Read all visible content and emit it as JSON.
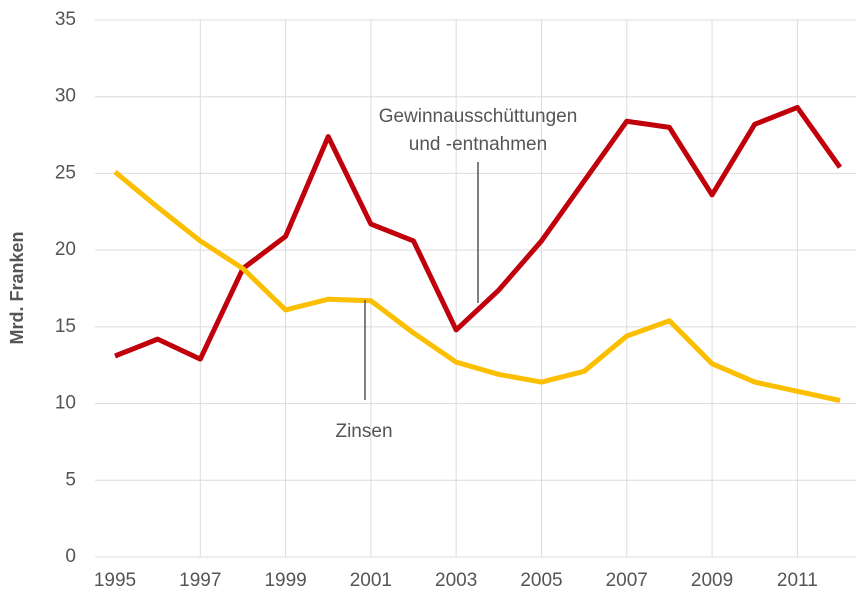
{
  "chart_data": {
    "type": "line",
    "y_label": "Mrd. Franken",
    "x": [
      1995,
      1996,
      1997,
      1998,
      1999,
      2000,
      2001,
      2002,
      2003,
      2004,
      2005,
      2006,
      2007,
      2008,
      2009,
      2010,
      2011,
      2012
    ],
    "series": [
      {
        "name": "Gewinnausschüttungen und -entnahmen",
        "color": "#c0000b",
        "values": [
          13.1,
          14.2,
          12.9,
          18.8,
          20.9,
          27.4,
          21.7,
          20.6,
          14.8,
          17.4,
          20.6,
          24.5,
          28.4,
          28.0,
          23.6,
          28.2,
          29.3,
          25.4
        ]
      },
      {
        "name": "Zinsen",
        "color": "#fbbf00",
        "values": [
          25.1,
          22.8,
          20.6,
          18.8,
          16.1,
          16.8,
          16.7,
          14.6,
          12.7,
          11.9,
          11.4,
          12.1,
          14.4,
          15.4,
          12.6,
          11.4,
          10.8,
          10.2
        ]
      }
    ],
    "xlim": [
      1995,
      2012
    ],
    "xticks": [
      1995,
      1997,
      1999,
      2001,
      2003,
      2005,
      2007,
      2009,
      2011
    ],
    "ylim": [
      0,
      35
    ],
    "yticks": [
      0,
      5,
      10,
      15,
      20,
      25,
      30,
      35
    ],
    "grid": true
  }
}
